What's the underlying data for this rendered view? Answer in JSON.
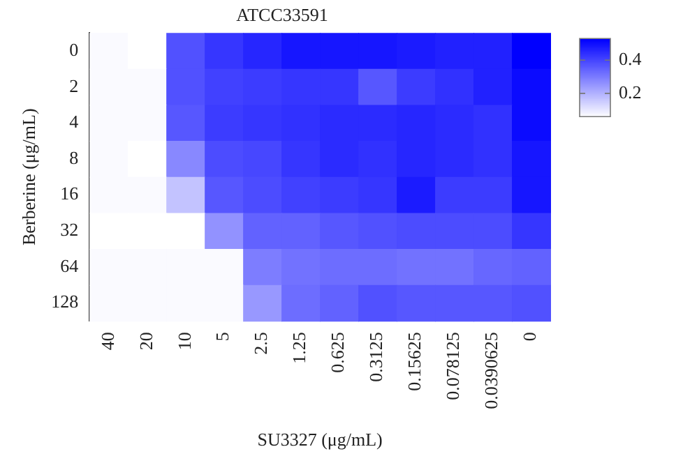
{
  "chart_data": {
    "type": "heatmap",
    "title": "ATCC33591",
    "xlabel": "SU3327 (μg/mL)",
    "ylabel": "Berberine (μg/mL)",
    "categories": [
      "40",
      "20",
      "10",
      "5",
      "2.5",
      "1.25",
      "0.625",
      "0.3125",
      "0.15625",
      "0.078125",
      "0.0390625",
      "0"
    ],
    "y_categories": [
      "0",
      "2",
      "4",
      "8",
      "16",
      "32",
      "64",
      "128"
    ],
    "cells": [
      [
        0.07,
        0.06,
        0.38,
        0.43,
        0.46,
        0.49,
        0.49,
        0.49,
        0.48,
        0.47,
        0.47,
        0.53
      ],
      [
        0.07,
        0.07,
        0.38,
        0.41,
        0.42,
        0.43,
        0.43,
        0.37,
        0.42,
        0.44,
        0.47,
        0.51
      ],
      [
        0.07,
        0.07,
        0.37,
        0.42,
        0.43,
        0.44,
        0.45,
        0.45,
        0.46,
        0.45,
        0.44,
        0.51
      ],
      [
        0.07,
        0.06,
        0.28,
        0.39,
        0.4,
        0.43,
        0.45,
        0.44,
        0.46,
        0.45,
        0.44,
        0.49
      ],
      [
        0.07,
        0.07,
        0.17,
        0.37,
        0.39,
        0.41,
        0.42,
        0.43,
        0.48,
        0.42,
        0.42,
        0.49
      ],
      [
        0.06,
        0.06,
        0.06,
        0.26,
        0.35,
        0.35,
        0.37,
        0.38,
        0.39,
        0.39,
        0.39,
        0.43
      ],
      [
        0.07,
        0.07,
        0.07,
        0.07,
        0.3,
        0.32,
        0.33,
        0.33,
        0.32,
        0.32,
        0.34,
        0.35
      ],
      [
        0.07,
        0.07,
        0.07,
        0.07,
        0.25,
        0.33,
        0.35,
        0.38,
        0.37,
        0.37,
        0.37,
        0.38
      ]
    ],
    "clim": [
      0.06,
      0.53
    ],
    "cticks": [
      0.2,
      0.4
    ],
    "colors": [
      "#ffffff",
      "#0000ff"
    ]
  }
}
